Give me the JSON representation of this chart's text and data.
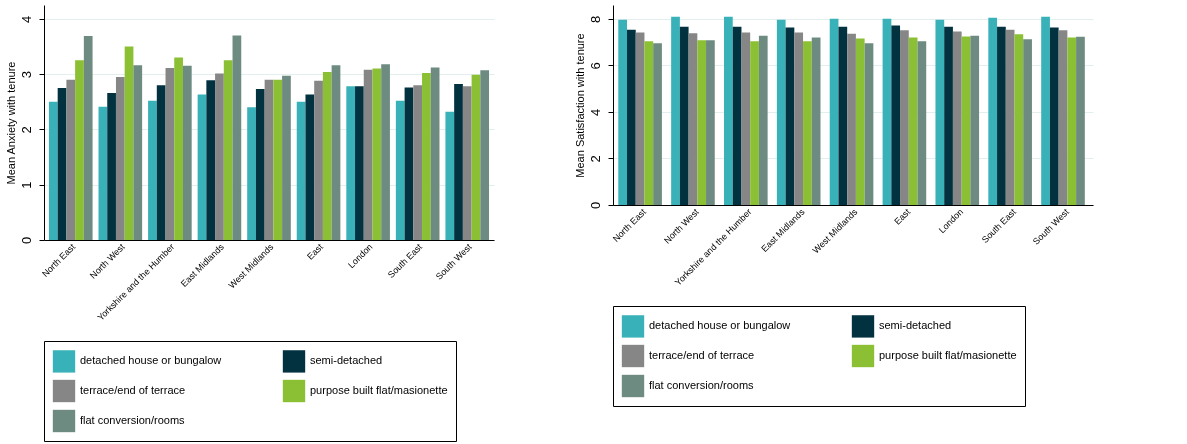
{
  "chart_data": [
    {
      "type": "bar",
      "ylabel": "Mean Anxiety with tenure",
      "categories": [
        "North East",
        "North West",
        "Yorkshire and the Humber",
        "East Midlands",
        "West Midlands",
        "East",
        "London",
        "South East",
        "South West"
      ],
      "ylim": [
        0,
        4.25
      ],
      "yticks": [
        0,
        1,
        2,
        3,
        4
      ],
      "grid": "y",
      "legend": "bottom",
      "series": [
        {
          "name": "detached house or bungalow",
          "color": "#38b2b8",
          "values": [
            2.5,
            2.41,
            2.52,
            2.63,
            2.4,
            2.5,
            2.78,
            2.52,
            2.32
          ]
        },
        {
          "name": "semi-detached",
          "color": "#023140",
          "values": [
            2.75,
            2.66,
            2.8,
            2.89,
            2.73,
            2.63,
            2.78,
            2.76,
            2.82
          ]
        },
        {
          "name": "terrace/end of terrace",
          "color": "#868686",
          "values": [
            2.9,
            2.95,
            3.11,
            3.01,
            2.9,
            2.88,
            3.08,
            2.8,
            2.78
          ]
        },
        {
          "name": "purpose built flat/masionette",
          "color": "#8bc034",
          "values": [
            3.25,
            3.5,
            3.3,
            3.25,
            2.9,
            3.04,
            3.1,
            3.02,
            2.99
          ]
        },
        {
          "name": "flat conversion/rooms",
          "color": "#6d8b80",
          "values": [
            3.69,
            3.16,
            3.15,
            3.7,
            2.97,
            3.16,
            3.18,
            3.12,
            3.07
          ]
        }
      ]
    },
    {
      "type": "bar",
      "ylabel": "Mean Satisfaction with tenure",
      "categories": [
        "North East",
        "North West",
        "Yorkshire and the Humber",
        "East Midlands",
        "West Midlands",
        "East",
        "London",
        "South East",
        "South West"
      ],
      "ylim": [
        0,
        8.6
      ],
      "yticks": [
        0,
        2,
        4,
        6,
        8
      ],
      "grid": "y",
      "legend": "bottom",
      "series": [
        {
          "name": "detached house or bungalow",
          "color": "#38b2b8",
          "values": [
            7.97,
            8.09,
            8.09,
            7.97,
            8.01,
            8.01,
            7.97,
            8.05,
            8.09
          ]
        },
        {
          "name": "semi-detached",
          "color": "#023140",
          "values": [
            7.54,
            7.67,
            7.66,
            7.63,
            7.67,
            7.72,
            7.67,
            7.67,
            7.63
          ]
        },
        {
          "name": "terrace/end of terrace",
          "color": "#868686",
          "values": [
            7.42,
            7.38,
            7.42,
            7.42,
            7.36,
            7.51,
            7.46,
            7.54,
            7.51
          ]
        },
        {
          "name": "purpose built flat/masionette",
          "color": "#8bc034",
          "values": [
            7.04,
            7.08,
            7.04,
            7.04,
            7.16,
            7.2,
            7.25,
            7.34,
            7.2
          ]
        },
        {
          "name": "flat conversion/rooms",
          "color": "#6d8b80",
          "values": [
            6.96,
            7.08,
            7.28,
            7.2,
            6.96,
            7.04,
            7.28,
            7.13,
            7.24
          ]
        }
      ]
    }
  ]
}
